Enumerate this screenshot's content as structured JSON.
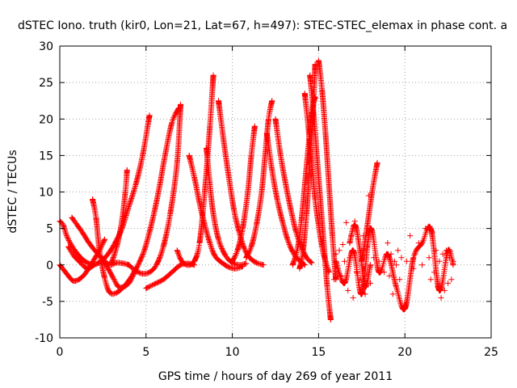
{
  "chart_data": {
    "type": "scatter",
    "title": "dSTEC Iono. truth (kir0, Lon=21, Lat=67, h=497): STEC-STEC_elemax in phase cont. a",
    "xlabel": "GPS time / hours of day 269 of year 2011",
    "ylabel": "dSTEC  / TECUs",
    "xlim": [
      0,
      25
    ],
    "ylim": [
      -10,
      30
    ],
    "xticks": [
      0,
      5,
      10,
      15,
      20,
      25
    ],
    "yticks": [
      -10,
      -5,
      0,
      5,
      10,
      15,
      20,
      25,
      30
    ],
    "grid": true,
    "marker": "+",
    "color": "#ff0000",
    "passes": [
      {
        "x": [
          0.0,
          0.2,
          0.4,
          0.7,
          1.0,
          1.3,
          1.6,
          1.9
        ],
        "y": [
          6.0,
          5.5,
          4.0,
          2.6,
          1.6,
          0.8,
          0.3,
          0.0
        ]
      },
      {
        "x": [
          0.0,
          0.3,
          0.6,
          0.8,
          1.1,
          1.4,
          1.7,
          2.0,
          2.3,
          2.6
        ],
        "y": [
          0.0,
          -0.9,
          -1.8,
          -2.2,
          -2.0,
          -1.4,
          -0.4,
          0.8,
          2.0,
          3.5
        ]
      },
      {
        "x": [
          0.5,
          0.8,
          1.2,
          1.6,
          2.0,
          2.4,
          2.8,
          3.2,
          3.6,
          4.0,
          4.4,
          4.8,
          5.2
        ],
        "y": [
          2.5,
          1.3,
          0.3,
          -0.5,
          0.0,
          0.5,
          1.5,
          3.0,
          5.0,
          8.0,
          11.0,
          15.0,
          20.5
        ]
      },
      {
        "x": [
          0.7,
          1.0,
          1.3,
          1.7,
          2.1,
          2.5,
          2.9,
          3.3,
          3.7,
          4.0
        ],
        "y": [
          6.5,
          5.5,
          4.5,
          3.0,
          1.8,
          0.8,
          0.0,
          0.3,
          0.2,
          0.0
        ]
      },
      {
        "x": [
          1.9,
          2.1,
          2.3,
          2.6,
          2.9,
          3.3,
          3.7,
          4.1,
          4.4
        ],
        "y": [
          9.0,
          6.5,
          2.0,
          -1.8,
          -3.8,
          -3.8,
          -3.0,
          -1.8,
          -0.5
        ]
      },
      {
        "x": [
          2.5,
          2.8,
          3.1,
          3.4,
          3.7,
          4.0,
          4.3,
          4.6,
          4.9,
          5.2,
          5.5,
          5.8,
          6.1,
          6.5,
          6.9
        ],
        "y": [
          0.5,
          -0.5,
          -1.8,
          -3.0,
          -3.0,
          -2.5,
          -1.2,
          0.3,
          2.0,
          4.5,
          7.5,
          11.0,
          15.0,
          19.5,
          21.5
        ]
      },
      {
        "x": [
          3.0,
          3.3,
          3.6,
          3.8,
          3.9
        ],
        "y": [
          0.3,
          2.5,
          6.0,
          10.0,
          13.0
        ]
      },
      {
        "x": [
          4.0,
          4.4,
          4.8,
          5.2,
          5.6,
          6.0,
          6.4,
          6.8,
          7.0
        ],
        "y": [
          0.0,
          -0.8,
          -1.2,
          -1.0,
          0.0,
          2.5,
          7.0,
          14.0,
          22.0
        ]
      },
      {
        "x": [
          5.0,
          5.5,
          6.0,
          6.5,
          7.0,
          7.5,
          7.8
        ],
        "y": [
          -3.2,
          -2.6,
          -2.0,
          -1.0,
          0.0,
          0.2,
          0.0
        ]
      },
      {
        "x": [
          7.5,
          7.8,
          8.1,
          8.4,
          8.7,
          9.0,
          9.4,
          9.8,
          10.2,
          10.6
        ],
        "y": [
          15.0,
          12.0,
          8.5,
          5.5,
          3.0,
          1.2,
          0.3,
          -0.3,
          -0.5,
          -0.2
        ]
      },
      {
        "x": [
          6.8,
          7.0,
          7.2,
          7.5,
          7.8,
          8.1,
          8.4,
          8.7,
          8.9
        ],
        "y": [
          2.0,
          0.8,
          0.2,
          0.0,
          0.5,
          3.0,
          10.0,
          19.0,
          26.0
        ]
      },
      {
        "x": [
          8.5,
          8.7,
          8.9,
          9.2,
          9.6,
          10.0,
          10.4,
          10.8
        ],
        "y": [
          16.0,
          11.0,
          7.0,
          3.5,
          1.3,
          0.3,
          0.0,
          0.2
        ]
      },
      {
        "x": [
          9.2,
          9.5,
          9.8,
          10.1,
          10.4,
          10.7,
          11.0,
          11.4,
          11.8
        ],
        "y": [
          22.5,
          17.0,
          12.0,
          7.5,
          4.5,
          2.2,
          1.0,
          0.3,
          0.0
        ]
      },
      {
        "x": [
          10.0,
          10.3,
          10.6,
          10.9,
          11.1,
          11.3
        ],
        "y": [
          0.5,
          2.0,
          5.0,
          10.0,
          15.0,
          19.0
        ]
      },
      {
        "x": [
          10.8,
          11.1,
          11.4,
          11.7,
          11.9,
          12.1,
          12.3
        ],
        "y": [
          1.0,
          2.5,
          5.5,
          10.0,
          15.0,
          20.0,
          22.5
        ]
      },
      {
        "x": [
          12.0,
          12.3,
          12.6,
          12.9,
          13.2,
          13.5,
          13.8,
          14.2
        ],
        "y": [
          18.0,
          13.0,
          9.0,
          6.0,
          3.5,
          1.8,
          0.8,
          0.0
        ]
      },
      {
        "x": [
          12.5,
          12.8,
          13.1,
          13.4,
          13.7,
          14.0,
          14.3,
          14.6
        ],
        "y": [
          20.0,
          15.0,
          11.0,
          7.5,
          4.5,
          2.5,
          1.0,
          0.3
        ]
      },
      {
        "x": [
          13.5,
          13.8,
          14.0,
          14.2,
          14.4,
          14.6,
          14.8
        ],
        "y": [
          0.0,
          2.5,
          6.0,
          11.0,
          16.0,
          21.0,
          23.0
        ]
      },
      {
        "x": [
          14.2,
          14.4,
          14.6,
          14.8,
          15.0,
          15.2,
          15.4,
          15.6
        ],
        "y": [
          23.5,
          19.0,
          14.0,
          9.0,
          5.5,
          2.5,
          0.5,
          -1.0
        ]
      },
      {
        "x": [
          13.9,
          14.1,
          14.3,
          14.5,
          14.7,
          14.8
        ],
        "y": [
          -0.5,
          2.0,
          7.0,
          14.0,
          22.0,
          27.5
        ]
      },
      {
        "x": [
          14.5,
          14.7,
          14.9,
          15.1,
          15.3,
          15.5,
          15.7
        ],
        "y": [
          26.0,
          21.0,
          15.0,
          9.0,
          3.0,
          -3.0,
          -7.5
        ]
      },
      {
        "x": [
          15.0,
          15.2,
          15.4,
          15.6,
          15.8,
          16.0
        ],
        "y": [
          28.0,
          24.0,
          18.0,
          11.0,
          4.0,
          -2.0
        ]
      },
      {
        "x": [
          16.0,
          16.5,
          17.0,
          17.5,
          18.0,
          18.5,
          19.0,
          19.5,
          20.0,
          20.5,
          21.0,
          21.5,
          22.0,
          22.5,
          22.8
        ],
        "y": [
          0.5,
          -2.5,
          2.0,
          -4.0,
          5.0,
          -1.0,
          1.5,
          -3.0,
          -6.0,
          1.0,
          3.0,
          5.0,
          -3.5,
          2.0,
          0.0
        ]
      },
      {
        "x": [
          17.5,
          17.8,
          18.1,
          18.4
        ],
        "y": [
          0.5,
          5.0,
          10.0,
          14.0
        ]
      },
      {
        "x": [
          16.8,
          17.1,
          17.4,
          17.7,
          18.0
        ],
        "y": [
          3.0,
          5.5,
          2.0,
          -3.0,
          0.0
        ]
      }
    ],
    "scatter_points": [
      [
        15.9,
        -2.0
      ],
      [
        16.0,
        1.5
      ],
      [
        16.1,
        -0.5
      ],
      [
        16.2,
        2.0
      ],
      [
        16.3,
        -1.5
      ],
      [
        16.4,
        2.8
      ],
      [
        16.5,
        0.5
      ],
      [
        16.6,
        5.8
      ],
      [
        16.7,
        -3.5
      ],
      [
        16.8,
        1.0
      ],
      [
        16.9,
        4.0
      ],
      [
        17.0,
        -4.5
      ],
      [
        17.1,
        6.0
      ],
      [
        17.2,
        -1.0
      ],
      [
        17.3,
        3.5
      ],
      [
        17.4,
        -2.0
      ],
      [
        17.5,
        0.5
      ],
      [
        17.6,
        4.0
      ],
      [
        17.7,
        -4.0
      ],
      [
        17.8,
        2.5
      ],
      [
        17.9,
        9.5
      ],
      [
        18.0,
        -2.5
      ],
      [
        18.2,
        1.0
      ],
      [
        18.5,
        0.5
      ],
      [
        18.8,
        -1.0
      ],
      [
        19.0,
        3.0
      ],
      [
        19.1,
        -1.5
      ],
      [
        19.2,
        1.5
      ],
      [
        19.3,
        -4.0
      ],
      [
        19.4,
        0.5
      ],
      [
        19.5,
        0.0
      ],
      [
        19.6,
        2.0
      ],
      [
        19.7,
        -2.0
      ],
      [
        19.8,
        1.0
      ],
      [
        19.9,
        -6.0
      ],
      [
        20.0,
        -5.5
      ],
      [
        20.1,
        0.5
      ],
      [
        20.3,
        4.0
      ],
      [
        20.5,
        -0.5
      ],
      [
        20.6,
        1.5
      ],
      [
        20.8,
        3.0
      ],
      [
        21.0,
        0.0
      ],
      [
        21.2,
        5.0
      ],
      [
        21.4,
        1.0
      ],
      [
        21.5,
        -2.0
      ],
      [
        21.6,
        4.5
      ],
      [
        21.7,
        -1.0
      ],
      [
        21.8,
        2.0
      ],
      [
        21.9,
        -3.0
      ],
      [
        22.0,
        0.5
      ],
      [
        22.1,
        -4.5
      ],
      [
        22.2,
        1.5
      ],
      [
        22.3,
        -3.5
      ],
      [
        22.4,
        2.0
      ],
      [
        22.5,
        -2.5
      ],
      [
        22.6,
        1.0
      ],
      [
        22.7,
        -2.0
      ],
      [
        22.8,
        0.5
      ]
    ]
  }
}
